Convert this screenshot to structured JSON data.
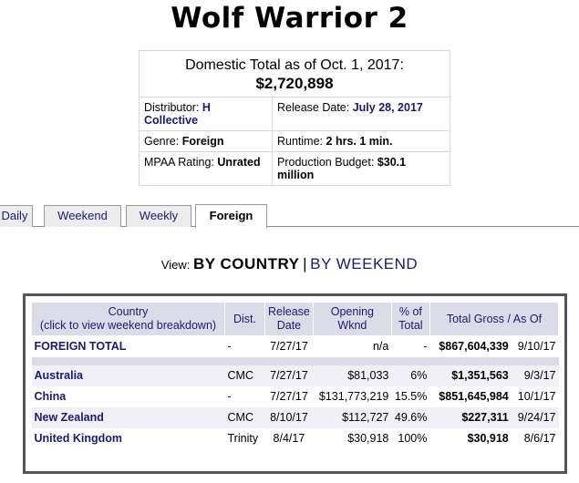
{
  "title": "Wolf Warrior 2",
  "summary": {
    "domestic_label": "Domestic Total as of Oct. 1, 2017:",
    "domestic_value": "$2,720,898",
    "distributor_label": "Distributor:",
    "distributor_value": "H Collective",
    "release_label": "Release Date:",
    "release_value": "July 28, 2017",
    "genre_label": "Genre:",
    "genre_value": "Foreign",
    "runtime_label": "Runtime:",
    "runtime_value": "2 hrs. 1 min.",
    "mpaa_label": "MPAA Rating:",
    "mpaa_value": "Unrated",
    "budget_label": "Production Budget:",
    "budget_value": "$30.1 million"
  },
  "tabs": [
    "Daily",
    "Weekend",
    "Weekly",
    "Foreign"
  ],
  "view": {
    "label": "View:",
    "current": "BY COUNTRY",
    "separator": "|",
    "alternate": "BY WEEKEND"
  },
  "table": {
    "headers": {
      "country": "Country",
      "country_hint": "(click to view weekend breakdown)",
      "dist": "Dist.",
      "release": "Release Date",
      "opening": "Opening Wknd",
      "pct": "% of Total",
      "gross": "Total Gross",
      "gross_sep": "/",
      "asof": "As Of"
    },
    "total": {
      "country": "FOREIGN TOTAL",
      "dist": "-",
      "release": "7/27/17",
      "opening": "n/a",
      "pct": "-",
      "gross": "$867,604,339",
      "asof": "9/10/17"
    },
    "rows": [
      {
        "country": "Australia",
        "dist": "CMC",
        "release": "7/27/17",
        "opening": "$81,033",
        "pct": "6%",
        "gross": "$1,351,563",
        "asof": "9/3/17"
      },
      {
        "country": "China",
        "dist": "-",
        "release": "7/27/17",
        "opening": "$131,773,219",
        "pct": "15.5%",
        "gross": "$851,645,984",
        "asof": "10/1/17"
      },
      {
        "country": "New Zealand",
        "dist": "CMC",
        "release": "8/10/17",
        "opening": "$112,727",
        "pct": "49.6%",
        "gross": "$227,311",
        "asof": "9/24/17"
      },
      {
        "country": "United Kingdom",
        "dist": "Trinity",
        "release": "8/4/17",
        "opening": "$30,918",
        "pct": "100%",
        "gross": "$30,918",
        "asof": "8/6/17"
      }
    ]
  }
}
